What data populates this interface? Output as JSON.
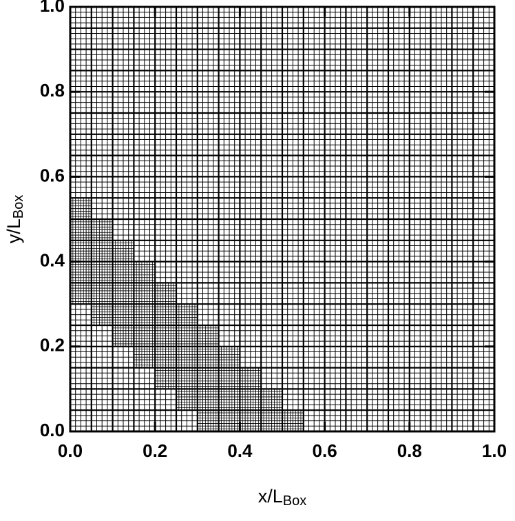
{
  "chart_data": {
    "type": "mesh",
    "xlabel": "x/L",
    "xlabel_sub": "Box",
    "ylabel": "y/L",
    "ylabel_sub": "Box",
    "xlim": [
      0,
      1
    ],
    "ylim": [
      0,
      1
    ],
    "xticks": [
      {
        "value": 0,
        "label": "0.0"
      },
      0.2,
      0.4,
      0.6,
      0.8,
      {
        "value": 1,
        "label": "1.0"
      }
    ],
    "yticks": [
      {
        "value": 0,
        "label": "0.0"
      },
      0.2,
      0.4,
      0.6,
      0.8,
      {
        "value": 1,
        "label": "1.0"
      }
    ],
    "mesh": {
      "coarse_cells": 80,
      "refine": 2,
      "block": 0.05,
      "band": [
        0.33,
        0.58
      ]
    },
    "color": "#000000"
  }
}
